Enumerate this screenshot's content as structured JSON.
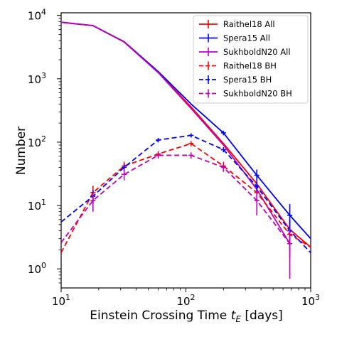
{
  "chart_data": {
    "type": "line",
    "xlabel": "Einstein Crossing Time",
    "xlabel_math": "t",
    "xlabel_sub": "E",
    "xlabel_unit": "[days]",
    "ylabel": "Number",
    "xscale": "log",
    "yscale": "log",
    "xlim": [
      10,
      1000
    ],
    "ylim": [
      0.5,
      11000
    ],
    "xticks": [
      {
        "base": "10",
        "exp": "1",
        "value": 10
      },
      {
        "base": "10",
        "exp": "2",
        "value": 100
      },
      {
        "base": "10",
        "exp": "3",
        "value": 1000
      }
    ],
    "yticks": [
      {
        "base": "10",
        "exp": "0",
        "value": 1
      },
      {
        "base": "10",
        "exp": "1",
        "value": 10
      },
      {
        "base": "10",
        "exp": "2",
        "value": 100
      },
      {
        "base": "10",
        "exp": "3",
        "value": 1000
      },
      {
        "base": "10",
        "exp": "4",
        "value": 10000
      }
    ],
    "grid": false,
    "legend_position": "top-right",
    "series": [
      {
        "name": "Raithel18 All",
        "color": "#ff0000",
        "dash": "solid",
        "x": [
          10,
          18,
          32,
          60,
          110,
          200,
          370,
          680,
          1000
        ],
        "y": [
          7800,
          6900,
          3800,
          1270,
          360,
          95,
          22,
          4.2,
          2.2
        ],
        "err": [
          0,
          0,
          0,
          0,
          0,
          0,
          0,
          0,
          0
        ]
      },
      {
        "name": "Spera15 All",
        "color": "#0000ff",
        "dash": "solid",
        "x": [
          10,
          18,
          32,
          60,
          110,
          200,
          370,
          680,
          1000
        ],
        "y": [
          7800,
          6900,
          3850,
          1300,
          400,
          140,
          30,
          7,
          3
        ],
        "err": [
          0,
          0,
          0,
          0,
          0,
          12,
          7,
          3.5,
          0
        ]
      },
      {
        "name": "SukhboldN20 All",
        "color": "#bf00bf",
        "dash": "solid",
        "x": [
          10,
          18,
          32,
          60,
          110,
          200,
          370,
          680
        ],
        "y": [
          7800,
          6900,
          3800,
          1250,
          340,
          90,
          18,
          2.5
        ],
        "err": [
          0,
          0,
          0,
          0,
          0,
          0,
          0,
          0
        ]
      },
      {
        "name": "Raithel18 BH",
        "color": "#ff0000",
        "dash": "dashed",
        "x": [
          10,
          18,
          32,
          60,
          110,
          200,
          370,
          680,
          1000
        ],
        "y": [
          1.8,
          16,
          42,
          65,
          95,
          42,
          16,
          3.5,
          2.2
        ],
        "err": [
          0,
          4.5,
          7,
          7,
          9,
          7,
          5,
          2,
          0
        ]
      },
      {
        "name": "Spera15 BH",
        "color": "#0000ff",
        "dash": "dashed",
        "x": [
          10,
          18,
          32,
          60,
          110,
          200,
          370,
          680,
          1000
        ],
        "y": [
          5.5,
          14,
          40,
          108,
          128,
          76,
          20,
          4,
          1.8
        ],
        "err": [
          0,
          3.5,
          6,
          9,
          10,
          7,
          4,
          2,
          0
        ]
      },
      {
        "name": "SukhboldN20 BH",
        "color": "#bf00bf",
        "dash": "dashed",
        "x": [
          10,
          18,
          32,
          60,
          110,
          200,
          370,
          680
        ],
        "y": [
          2.6,
          12,
          31,
          62,
          62,
          40,
          12,
          2.5
        ],
        "err": [
          0,
          4,
          6,
          7,
          7,
          6,
          5,
          1.8
        ]
      }
    ]
  }
}
